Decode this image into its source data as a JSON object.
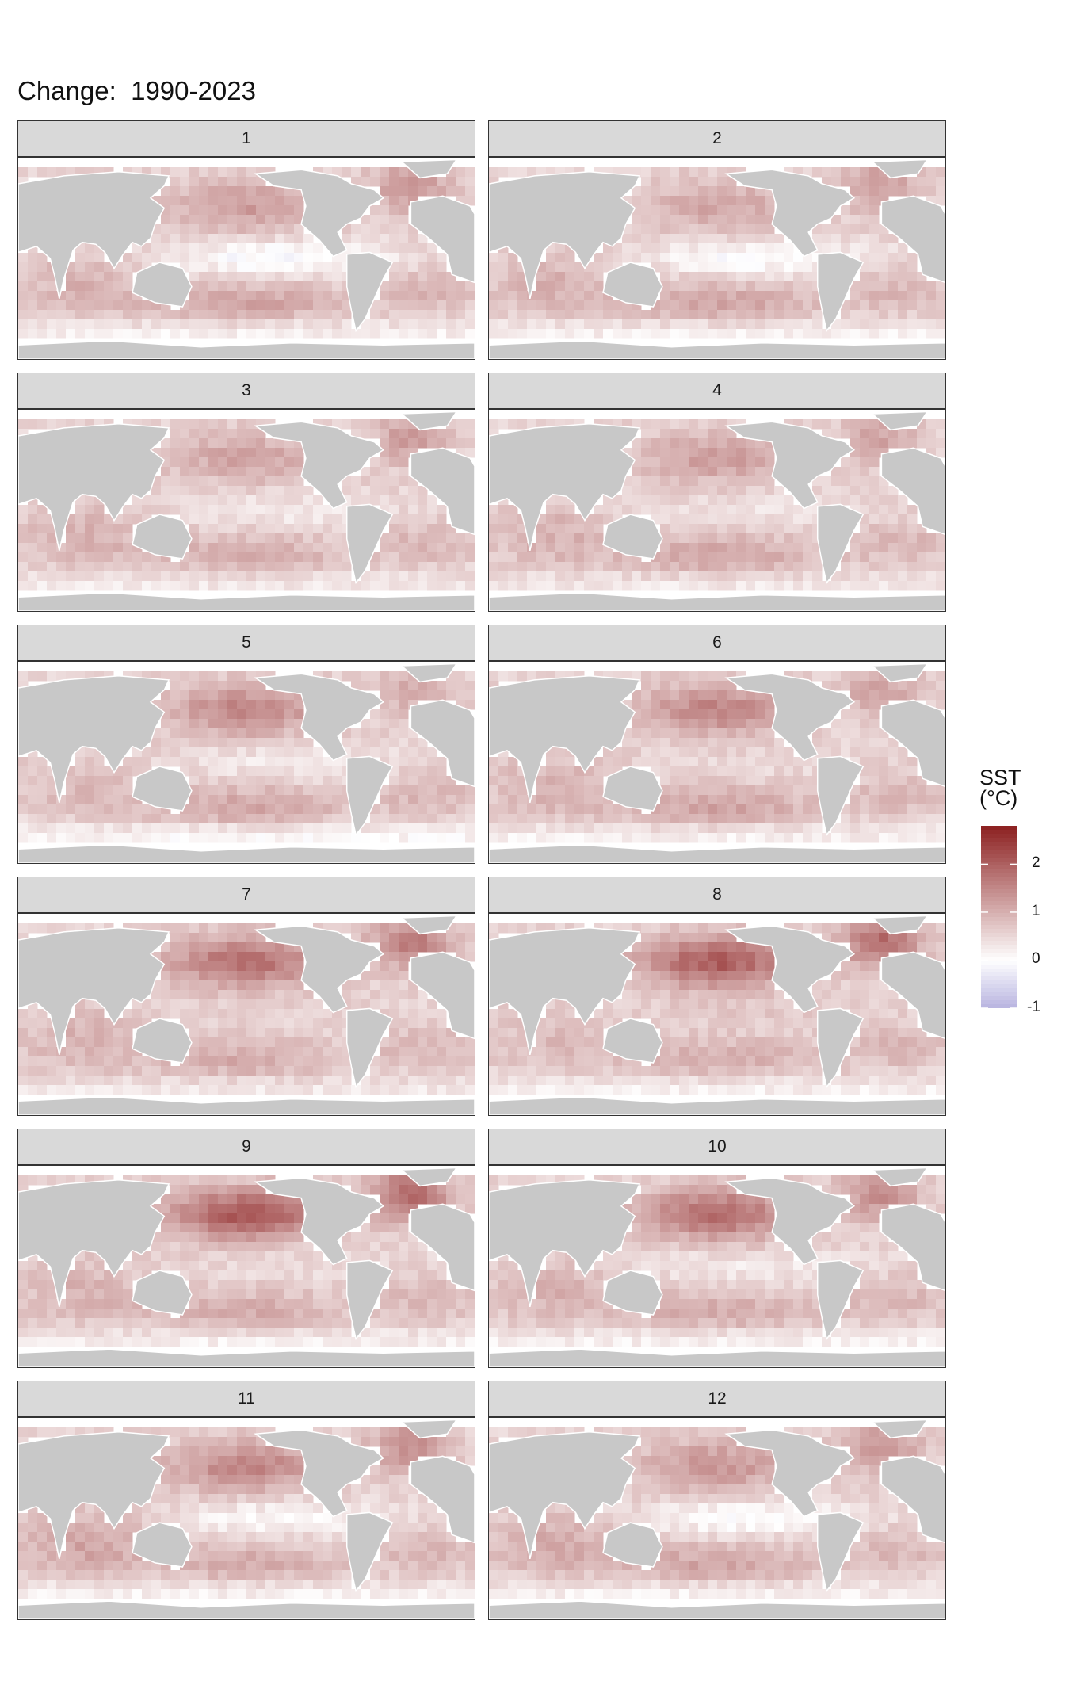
{
  "title": "Change:  1990-2023",
  "colors": {
    "negative": "#b8b4e0",
    "zero": "#ffffff",
    "positive": "#8c2020",
    "land": "#c8c8c8",
    "strip": "#d9d9d9"
  },
  "chart_data": {
    "type": "heatmap",
    "title": "Change:  1990-2023",
    "facet_labels": [
      "1",
      "2",
      "3",
      "4",
      "5",
      "6",
      "7",
      "8",
      "9",
      "10",
      "11",
      "12"
    ],
    "facets": [
      {
        "label": "1",
        "n_pacific_warming": 1.2,
        "n_atlantic_warming": 1.3,
        "eq_pacific_change": -0.7,
        "southern_ocean_change": 0.2,
        "indian_ocean_warming": 0.9,
        "s_pacific_warming": 1.2
      },
      {
        "label": "2",
        "n_pacific_warming": 1.1,
        "n_atlantic_warming": 1.2,
        "eq_pacific_change": -0.6,
        "southern_ocean_change": 0.2,
        "indian_ocean_warming": 0.9,
        "s_pacific_warming": 1.2
      },
      {
        "label": "3",
        "n_pacific_warming": 1.1,
        "n_atlantic_warming": 1.2,
        "eq_pacific_change": -0.3,
        "southern_ocean_change": 0.3,
        "indian_ocean_warming": 0.9,
        "s_pacific_warming": 1.1
      },
      {
        "label": "4",
        "n_pacific_warming": 1.2,
        "n_atlantic_warming": 1.1,
        "eq_pacific_change": -0.2,
        "southern_ocean_change": 0.3,
        "indian_ocean_warming": 0.9,
        "s_pacific_warming": 1.2
      },
      {
        "label": "5",
        "n_pacific_warming": 1.5,
        "n_atlantic_warming": 1.0,
        "eq_pacific_change": -0.3,
        "southern_ocean_change": 0.1,
        "indian_ocean_warming": 0.8,
        "s_pacific_warming": 1.2
      },
      {
        "label": "6",
        "n_pacific_warming": 1.5,
        "n_atlantic_warming": 1.1,
        "eq_pacific_change": -0.1,
        "southern_ocean_change": 0.2,
        "indian_ocean_warming": 0.9,
        "s_pacific_warming": 1.2
      },
      {
        "label": "7",
        "n_pacific_warming": 1.8,
        "n_atlantic_warming": 1.6,
        "eq_pacific_change": 0.0,
        "southern_ocean_change": 0.3,
        "indian_ocean_warming": 0.9,
        "s_pacific_warming": 1.1
      },
      {
        "label": "8",
        "n_pacific_warming": 2.0,
        "n_atlantic_warming": 1.8,
        "eq_pacific_change": 0.1,
        "southern_ocean_change": 0.2,
        "indian_ocean_warming": 0.8,
        "s_pacific_warming": 1.1
      },
      {
        "label": "9",
        "n_pacific_warming": 2.1,
        "n_atlantic_warming": 1.9,
        "eq_pacific_change": -0.1,
        "southern_ocean_change": 0.2,
        "indian_ocean_warming": 0.9,
        "s_pacific_warming": 1.1
      },
      {
        "label": "10",
        "n_pacific_warming": 1.8,
        "n_atlantic_warming": 1.4,
        "eq_pacific_change": -0.3,
        "southern_ocean_change": 0.2,
        "indian_ocean_warming": 0.9,
        "s_pacific_warming": 1.1
      },
      {
        "label": "11",
        "n_pacific_warming": 1.5,
        "n_atlantic_warming": 1.4,
        "eq_pacific_change": -0.5,
        "southern_ocean_change": 0.2,
        "indian_ocean_warming": 1.1,
        "s_pacific_warming": 1.1
      },
      {
        "label": "12",
        "n_pacific_warming": 1.3,
        "n_atlantic_warming": 1.3,
        "eq_pacific_change": -0.6,
        "southern_ocean_change": 0.2,
        "indian_ocean_warming": 1.0,
        "s_pacific_warming": 1.2
      }
    ],
    "legend": {
      "title_line1": "SST",
      "title_line2": "(°C)",
      "placement": "right",
      "ticks": [
        2,
        1,
        0,
        -1
      ],
      "tick_labels": [
        "2",
        "1",
        "0",
        "-1"
      ],
      "range": [
        -1.0,
        2.8
      ]
    }
  }
}
